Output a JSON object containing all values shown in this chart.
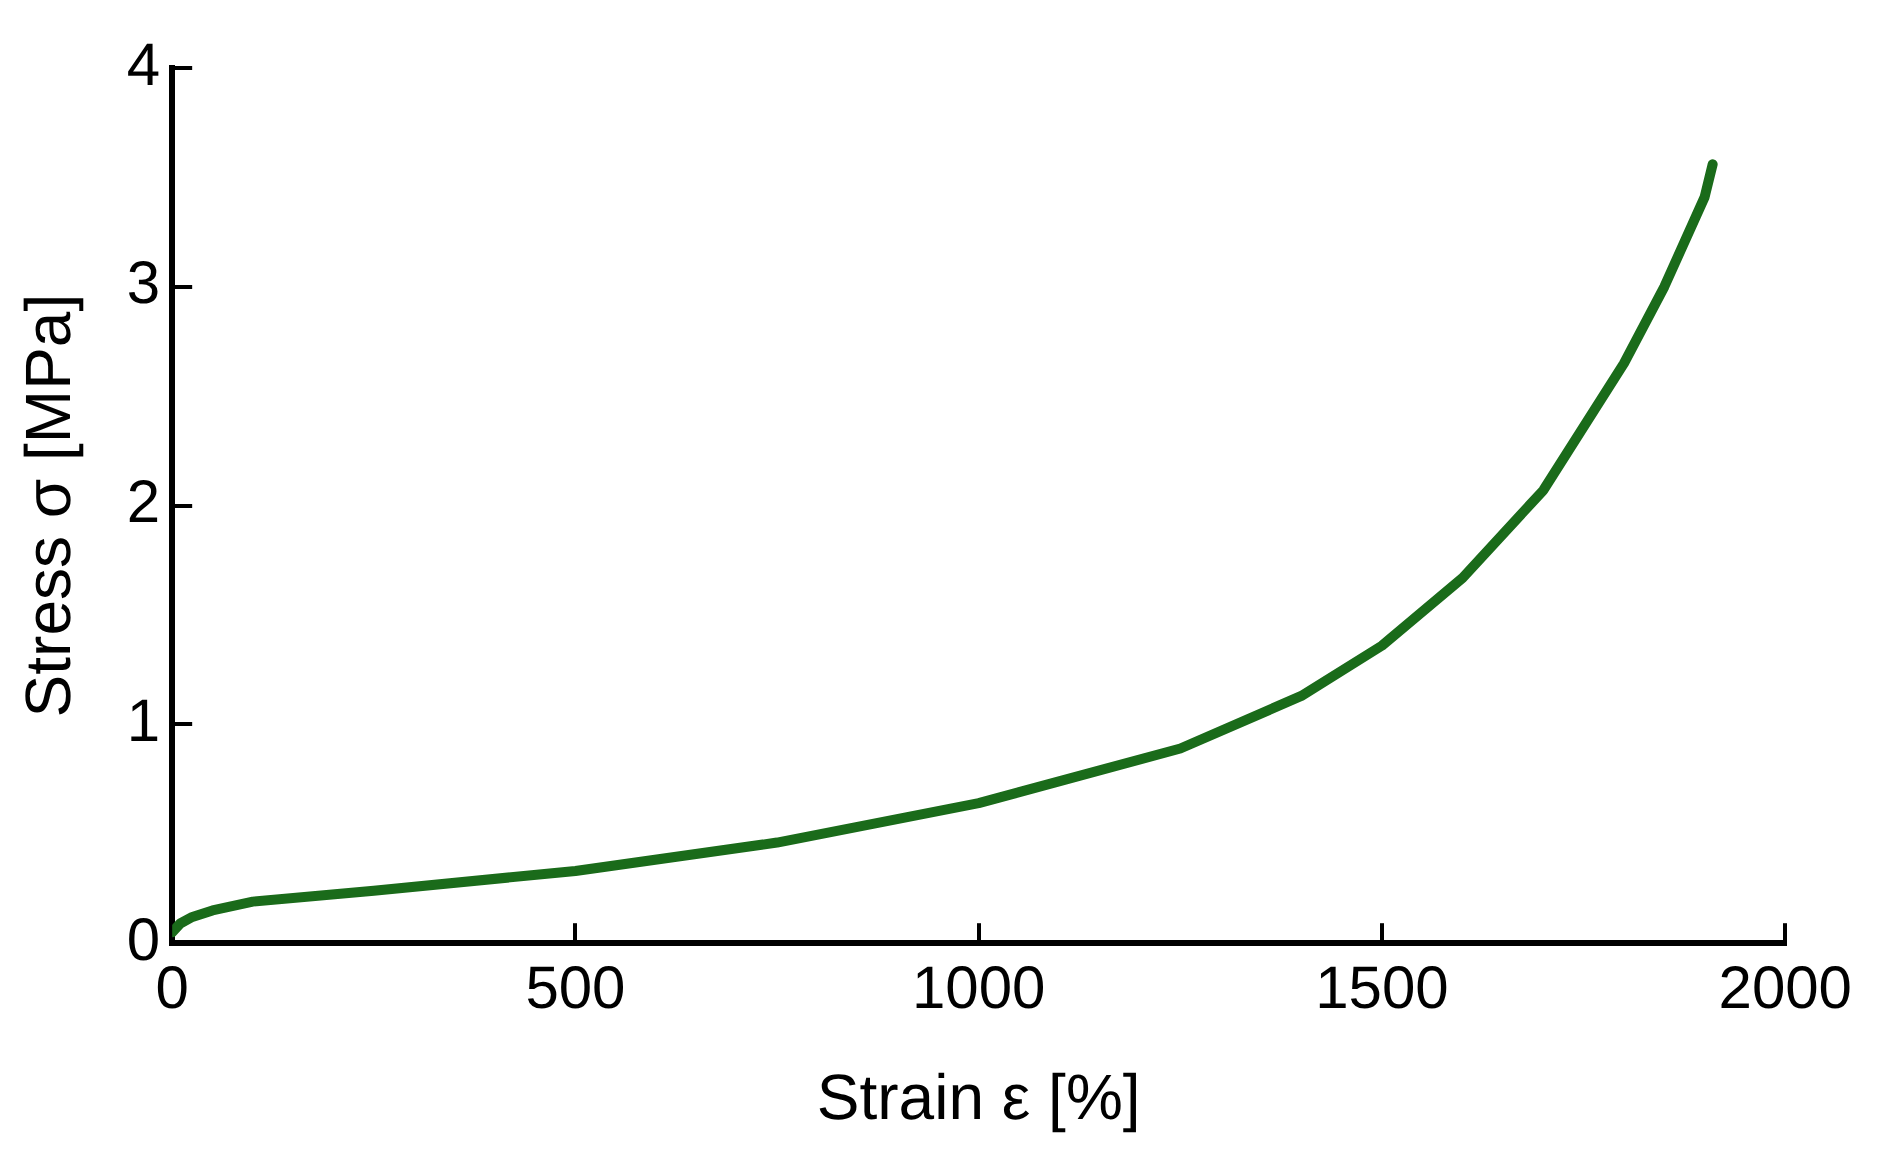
{
  "chart_data": {
    "type": "line",
    "xlabel": "Strain ε [%]",
    "ylabel": "Stress σ [MPa]",
    "x": [
      0,
      10,
      25,
      50,
      100,
      250,
      500,
      750,
      1000,
      1250,
      1400,
      1500,
      1600,
      1700,
      1800,
      1850,
      1900,
      1910
    ],
    "series": [
      {
        "color": "#1a6b1a",
        "values": [
          0.05,
          0.09,
          0.12,
          0.15,
          0.19,
          0.24,
          0.33,
          0.46,
          0.64,
          0.89,
          1.13,
          1.36,
          1.67,
          2.07,
          2.65,
          3.0,
          3.41,
          3.56
        ]
      }
    ],
    "xlim": [
      0,
      2000
    ],
    "ylim": [
      0,
      4
    ],
    "xticks": [
      0,
      500,
      1000,
      1500,
      2000
    ],
    "yticks": [
      0,
      1,
      2,
      3,
      4
    ],
    "grid": false,
    "legend": false,
    "marker": "none",
    "line_style": "solid"
  }
}
